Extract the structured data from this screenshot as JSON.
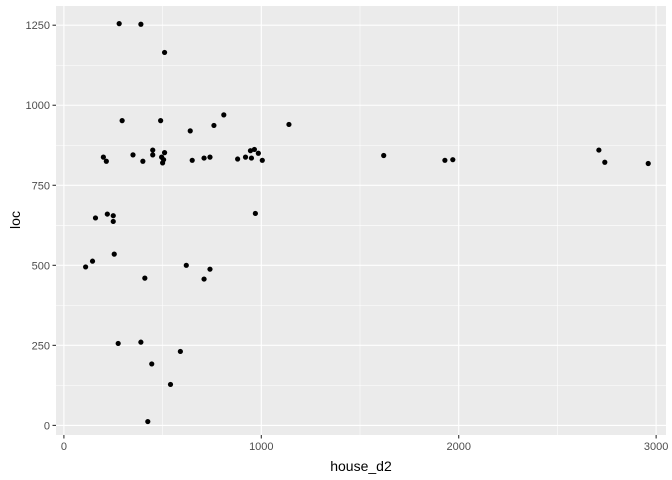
{
  "chart_data": {
    "type": "scatter",
    "xlabel": "house_d2",
    "ylabel": "loc",
    "xlim": [
      -40,
      3050
    ],
    "ylim": [
      -30,
      1310
    ],
    "x_ticks": [
      0,
      1000,
      2000,
      3000
    ],
    "x_tick_labels": [
      "0",
      "1000",
      "2000",
      "3000"
    ],
    "y_ticks": [
      0,
      250,
      500,
      750,
      1000,
      1250
    ],
    "y_tick_labels": [
      "0",
      "250",
      "500",
      "750",
      "1000",
      "1250"
    ],
    "grid": true,
    "colors": {
      "panel": "#ebebeb",
      "grid_major": "#ffffff",
      "point": "#000000"
    },
    "points": [
      {
        "x": 280,
        "y": 1255
      },
      {
        "x": 390,
        "y": 1253
      },
      {
        "x": 510,
        "y": 1165
      },
      {
        "x": 810,
        "y": 970
      },
      {
        "x": 1140,
        "y": 940
      },
      {
        "x": 490,
        "y": 952
      },
      {
        "x": 295,
        "y": 952
      },
      {
        "x": 640,
        "y": 920
      },
      {
        "x": 760,
        "y": 937
      },
      {
        "x": 450,
        "y": 860
      },
      {
        "x": 200,
        "y": 838
      },
      {
        "x": 215,
        "y": 825
      },
      {
        "x": 350,
        "y": 845
      },
      {
        "x": 400,
        "y": 825
      },
      {
        "x": 450,
        "y": 845
      },
      {
        "x": 495,
        "y": 838
      },
      {
        "x": 510,
        "y": 852
      },
      {
        "x": 505,
        "y": 830
      },
      {
        "x": 500,
        "y": 820
      },
      {
        "x": 650,
        "y": 828
      },
      {
        "x": 710,
        "y": 835
      },
      {
        "x": 740,
        "y": 838
      },
      {
        "x": 880,
        "y": 832
      },
      {
        "x": 920,
        "y": 838
      },
      {
        "x": 945,
        "y": 858
      },
      {
        "x": 950,
        "y": 835
      },
      {
        "x": 965,
        "y": 862
      },
      {
        "x": 985,
        "y": 850
      },
      {
        "x": 1005,
        "y": 828
      },
      {
        "x": 1620,
        "y": 843
      },
      {
        "x": 1930,
        "y": 828
      },
      {
        "x": 1970,
        "y": 830
      },
      {
        "x": 2710,
        "y": 860
      },
      {
        "x": 2740,
        "y": 822
      },
      {
        "x": 2960,
        "y": 818
      },
      {
        "x": 970,
        "y": 662
      },
      {
        "x": 220,
        "y": 660
      },
      {
        "x": 160,
        "y": 648
      },
      {
        "x": 250,
        "y": 655
      },
      {
        "x": 250,
        "y": 637
      },
      {
        "x": 255,
        "y": 535
      },
      {
        "x": 145,
        "y": 513
      },
      {
        "x": 110,
        "y": 495
      },
      {
        "x": 620,
        "y": 500
      },
      {
        "x": 740,
        "y": 488
      },
      {
        "x": 710,
        "y": 457
      },
      {
        "x": 410,
        "y": 460
      },
      {
        "x": 390,
        "y": 260
      },
      {
        "x": 275,
        "y": 256
      },
      {
        "x": 590,
        "y": 231
      },
      {
        "x": 445,
        "y": 192
      },
      {
        "x": 540,
        "y": 128
      },
      {
        "x": 425,
        "y": 12
      }
    ]
  }
}
